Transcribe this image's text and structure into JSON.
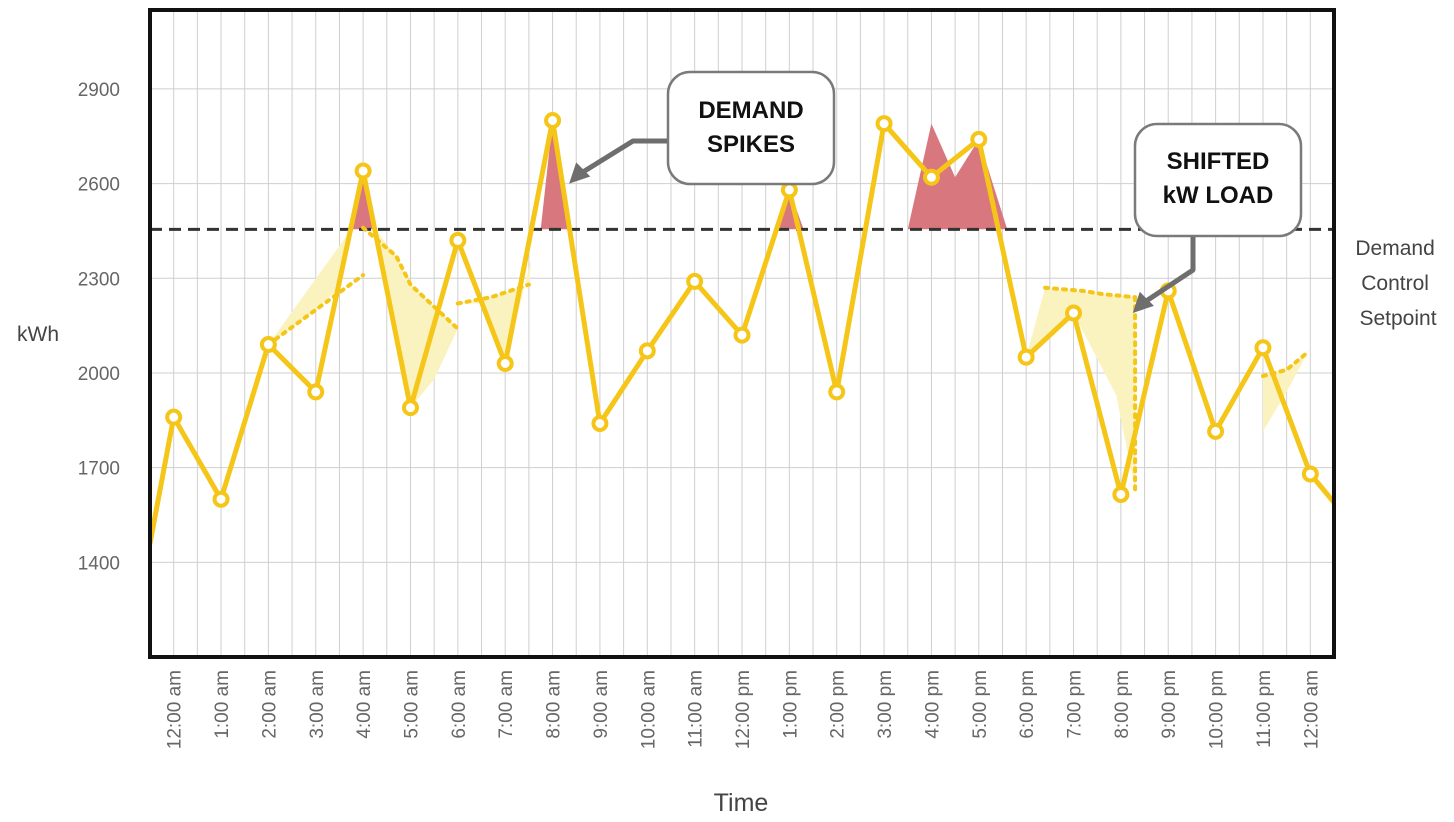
{
  "chart_data": {
    "type": "line",
    "xlabel": "Time",
    "ylabel": "kWh",
    "ylim": [
      1100,
      3150
    ],
    "y_ticks": [
      1400,
      1700,
      2000,
      2300,
      2600,
      2900
    ],
    "x_ticks": [
      "12:00 am",
      "1:00 am",
      "2:00 am",
      "3:00 am",
      "4:00 am",
      "5:00 am",
      "6:00 am",
      "7:00 am",
      "8:00 am",
      "9:00 am",
      "10:00 am",
      "11:00 am",
      "12:00 pm",
      "1:00 pm",
      "2:00 pm",
      "3:00 pm",
      "4:00 pm",
      "5:00 pm",
      "6:00 pm",
      "7:00 pm",
      "8:00 pm",
      "9:00 pm",
      "10:00 pm",
      "11:00 pm",
      "12:00 am"
    ],
    "grid": true,
    "series": [
      {
        "style": "solid",
        "x": [
          0,
          0.5,
          1.5,
          2.5,
          3.5,
          4.5,
          5.5,
          6.5,
          7.5,
          8.5,
          9.5,
          10.5,
          11.5,
          12.5,
          13.5,
          14.5,
          15.5,
          16.5,
          17.5,
          18.5,
          19.5,
          20.5,
          21.5,
          22.5,
          23.5,
          24.5,
          25
        ],
        "y": [
          1460,
          1860,
          1600,
          2090,
          1940,
          2640,
          1890,
          2420,
          2030,
          2800,
          1840,
          2070,
          2290,
          2120,
          2580,
          1940,
          2790,
          2620,
          2740,
          2050,
          2190,
          1615,
          2260,
          1815,
          2080,
          1680,
          1590
        ],
        "markers": [
          false,
          true,
          true,
          true,
          true,
          true,
          true,
          true,
          true,
          true,
          true,
          true,
          true,
          true,
          true,
          true,
          true,
          true,
          true,
          true,
          true,
          true,
          true,
          true,
          true,
          true,
          false
        ]
      },
      {
        "style": "dotted",
        "segments": [
          {
            "x": [
              2.5,
              3.5,
              4.5
            ],
            "y": [
              2090,
              2200,
              2310
            ]
          },
          {
            "x": [
              4.5,
              5.2,
              5.5,
              6.5
            ],
            "y": [
              2460,
              2370,
              2280,
              2140
            ]
          },
          {
            "x": [
              6.5,
              7.2,
              8.0
            ],
            "y": [
              2220,
              2240,
              2280
            ]
          },
          {
            "x": [
              18.9,
              19.7,
              20.1,
              20.8
            ],
            "y": [
              2270,
              2260,
              2250,
              2240
            ]
          },
          {
            "x": [
              20.8,
              20.8
            ],
            "y": [
              2240,
              1630
            ]
          },
          {
            "x": [
              23.5,
              24.0,
              24.4
            ],
            "y": [
              1990,
              2010,
              2060
            ]
          }
        ]
      }
    ],
    "setpoint": {
      "y": 2455,
      "label_lines": [
        "Demand",
        "Control",
        "Setpoint"
      ]
    },
    "spike_regions": [
      {
        "x": [
          4.25,
          4.5,
          4.75
        ],
        "y": [
          2455,
          2640,
          2455
        ]
      },
      {
        "x": [
          8.25,
          8.5,
          8.85
        ],
        "y": [
          2455,
          2800,
          2455
        ]
      },
      {
        "x": [
          13.2,
          13.5,
          13.8
        ],
        "y": [
          2455,
          2580,
          2455
        ]
      },
      {
        "x": [
          16.0,
          16.5,
          17.0,
          17.5,
          18.1
        ],
        "y": [
          2455,
          2790,
          2620,
          2740,
          2455
        ]
      }
    ],
    "shifted_regions": [
      {
        "x": [
          2.5,
          3.5,
          4.0,
          4.25
        ],
        "y": [
          2090,
          2200,
          2270,
          2455
        ]
      },
      {
        "x": [
          4.75,
          5.2,
          5.5,
          6.5,
          6.0,
          5.5
        ],
        "y": [
          2455,
          2370,
          2280,
          2140,
          1980,
          1890
        ]
      },
      {
        "x": [
          6.5,
          7.2,
          8.0,
          8.05,
          7.5,
          7.0
        ],
        "y": [
          2220,
          2240,
          2280,
          2360,
          2030,
          2220
        ]
      },
      {
        "x": [
          18.5,
          18.9,
          20.1,
          20.8,
          20.8,
          20.4,
          19.5,
          19.0
        ],
        "y": [
          2050,
          2270,
          2250,
          2240,
          1630,
          1930,
          2190,
          2110
        ]
      },
      {
        "x": [
          23.5,
          24.0,
          24.4,
          24.5,
          24.0,
          23.5
        ],
        "y": [
          1990,
          2010,
          2060,
          2080,
          1940,
          1815
        ]
      }
    ],
    "annotations": [
      {
        "lines": [
          "DEMAND",
          "SPIKES"
        ],
        "arrow_to": {
          "x": 8.85,
          "y": 2600
        }
      },
      {
        "lines": [
          "SHIFTED",
          "kW LOAD"
        ],
        "arrow_to": {
          "x": 20.75,
          "y": 2190
        }
      }
    ],
    "colors": {
      "line": "#f5c518",
      "marker_fill": "#ffffff",
      "spike_fill": "#d9777f",
      "shift_fill": "#fbf3bf",
      "setpoint_line": "#333333",
      "grid": "#cfcfcf",
      "frame": "#111111",
      "axis_text": "#666666",
      "arrow": "#6e6e6e"
    }
  }
}
